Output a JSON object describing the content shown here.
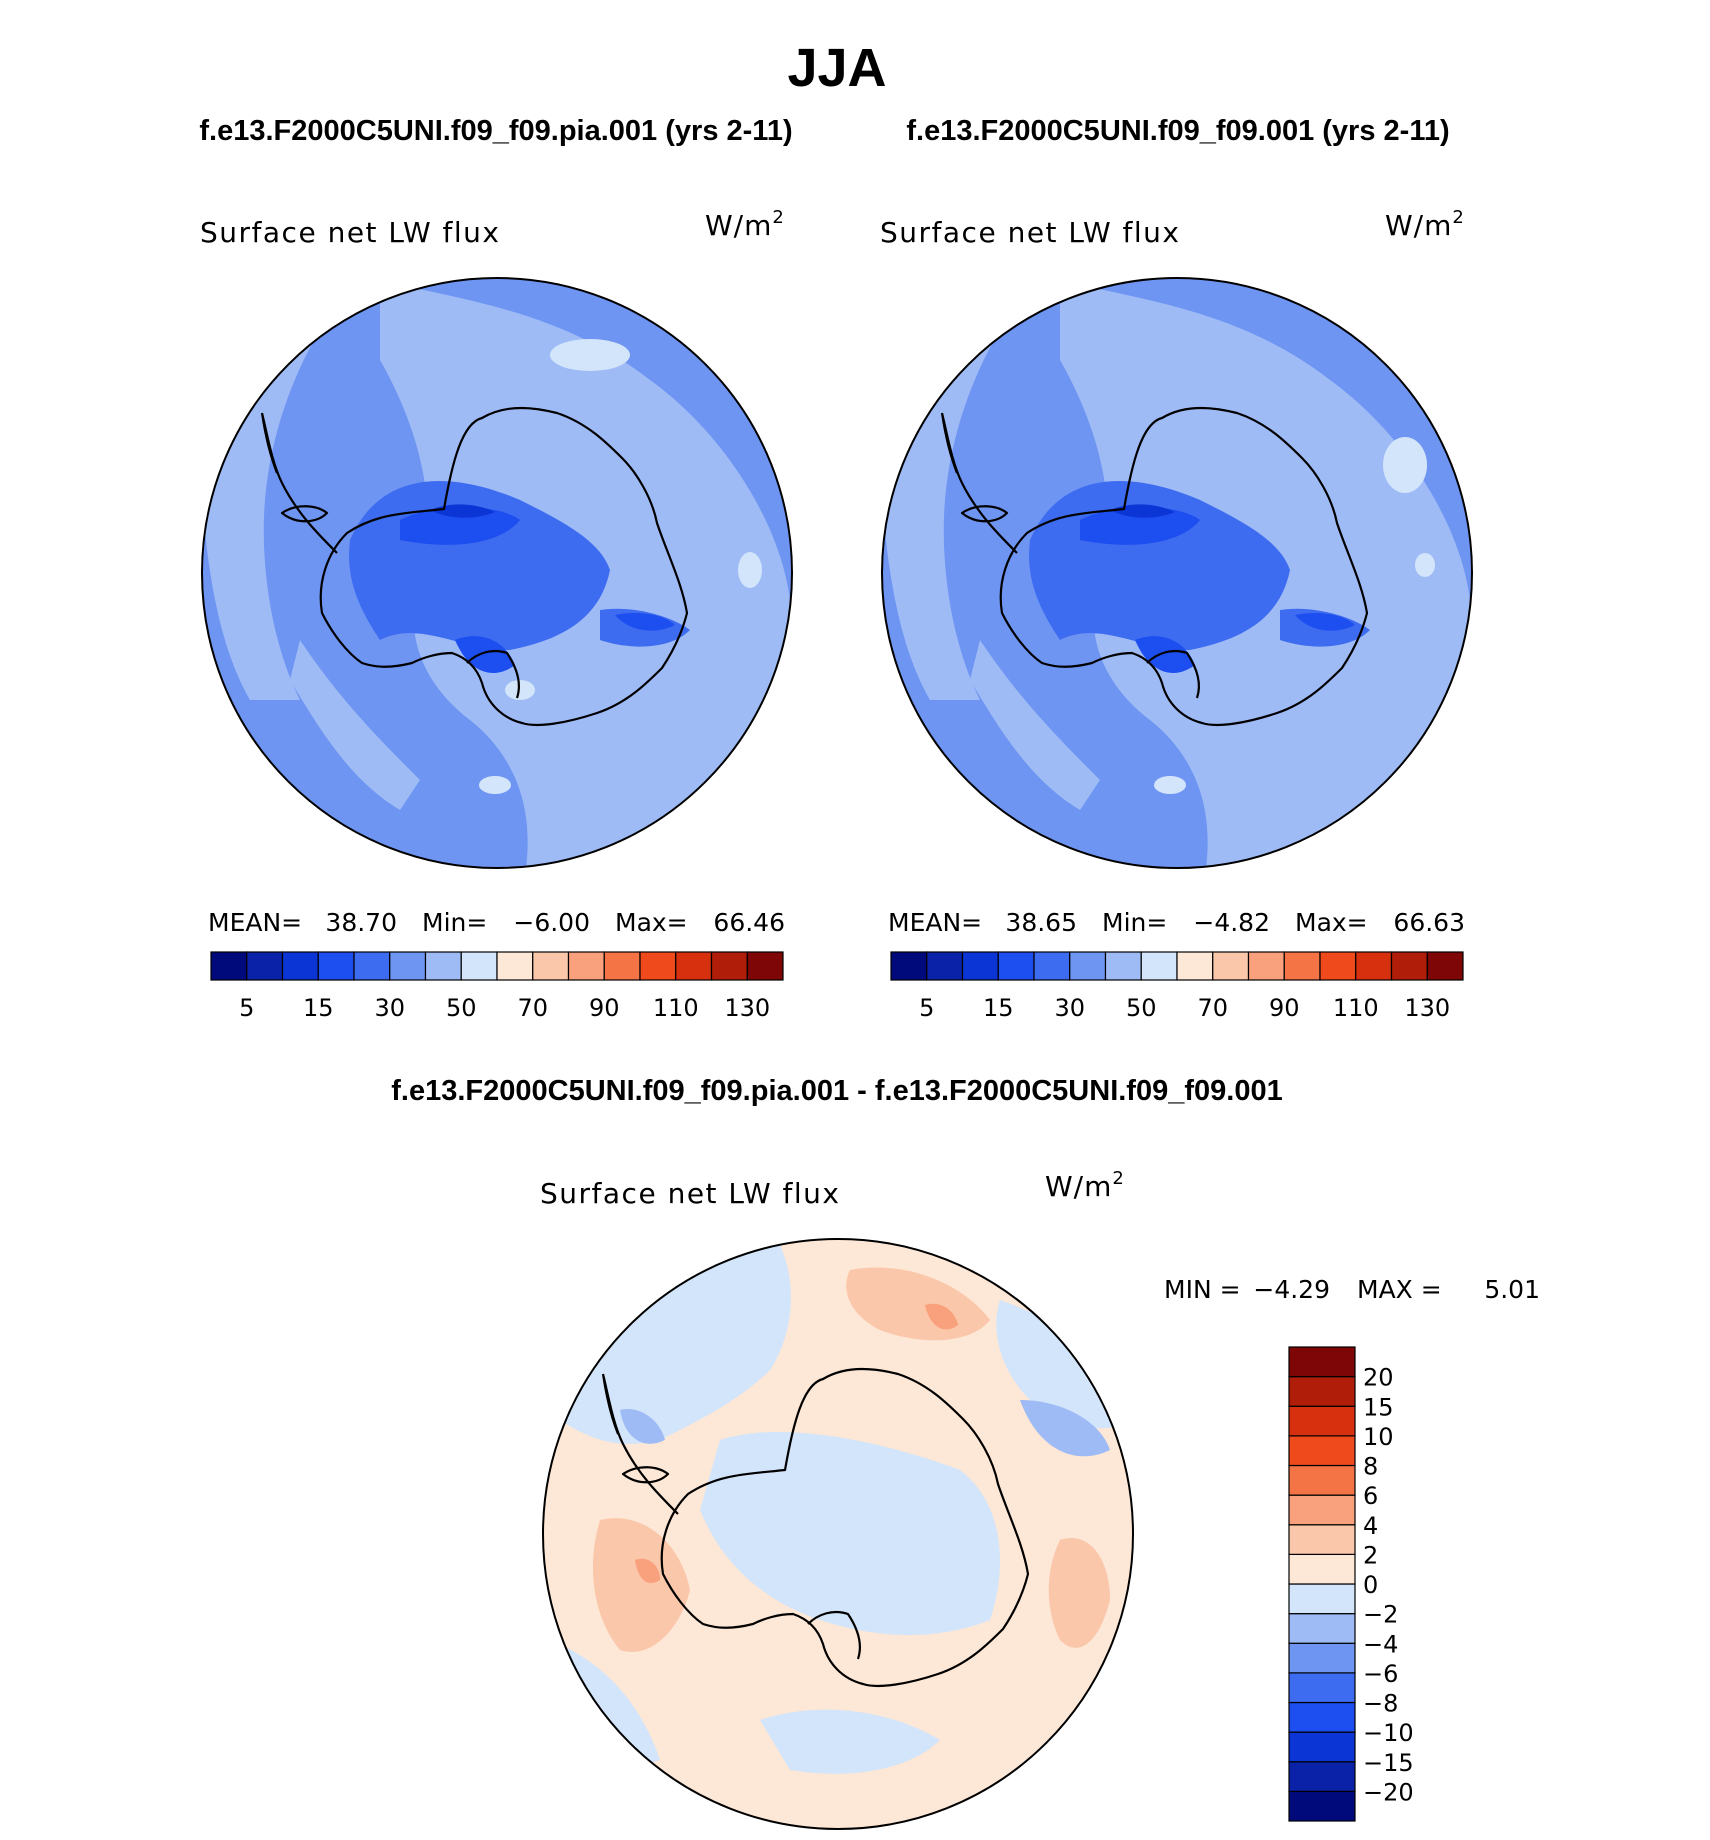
{
  "figure": {
    "season_title": "JJA",
    "panel_left": {
      "case_title": "f.e13.F2000C5UNI.f09_f09.pia.001 (yrs 2-11)",
      "variable": "Surface net LW flux",
      "units_base": "W/m",
      "units_exp": "2",
      "stats": {
        "mean_label": "MEAN=",
        "mean": "38.70",
        "min_label": "Min=",
        "min": "−6.00",
        "max_label": "Max=",
        "max": "66.46"
      }
    },
    "panel_right": {
      "case_title": "f.e13.F2000C5UNI.f09_f09.001 (yrs 2-11)",
      "variable": "Surface net LW flux",
      "units_base": "W/m",
      "units_exp": "2",
      "stats": {
        "mean_label": "MEAN=",
        "mean": "38.65",
        "min_label": "Min=",
        "min": "−4.82",
        "max_label": "Max=",
        "max": "66.63"
      }
    },
    "panel_diff": {
      "case_title": "f.e13.F2000C5UNI.f09_f09.pia.001 - f.e13.F2000C5UNI.f09_f09.001",
      "variable": "Surface net LW flux",
      "units_base": "W/m",
      "units_exp": "2",
      "stats": {
        "min_label": "MIN =",
        "min": "−4.29",
        "max_label": "MAX =",
        "max": "5.01"
      }
    },
    "colorbar_abs": {
      "colors": [
        "#000a7a",
        "#0a22a8",
        "#0c35d6",
        "#1c4ef0",
        "#3e6cf0",
        "#6f95f2",
        "#9fbbf6",
        "#d3e5fa",
        "#fde7d6",
        "#fbc7aa",
        "#f9a07c",
        "#f47446",
        "#ee4a1c",
        "#d7300e",
        "#b01d08",
        "#7e0606"
      ],
      "tick_labels": [
        "5",
        "15",
        "30",
        "50",
        "70",
        "90",
        "110",
        "130"
      ]
    },
    "colorbar_diff": {
      "colors": [
        "#000a7a",
        "#0a22a8",
        "#0c35d6",
        "#1c4ef0",
        "#3e6cf0",
        "#6f95f2",
        "#9fbbf6",
        "#d3e5fa",
        "#fde7d6",
        "#fbc7aa",
        "#f9a07c",
        "#f47446",
        "#ee4a1c",
        "#d7300e",
        "#b01d08",
        "#7e0606"
      ],
      "tick_labels": [
        "−20",
        "−15",
        "−10",
        "−8",
        "−6",
        "−4",
        "−2",
        "0",
        "2",
        "4",
        "6",
        "8",
        "10",
        "15",
        "20"
      ]
    },
    "map_palette": {
      "abs_base": "#6f95f2",
      "abs_light": "#9fbbf6",
      "abs_lighter": "#d3e5fa",
      "abs_mid": "#3e6cf0",
      "abs_dark": "#1c4ef0",
      "abs_darker": "#0c35d6",
      "diff_base": "#fde7d6",
      "diff_neg": "#d3e5fa",
      "diff_neg2": "#9fbbf6",
      "diff_pos": "#fbc7aa",
      "diff_pos2": "#f9a07c",
      "coast": "#000000"
    }
  }
}
